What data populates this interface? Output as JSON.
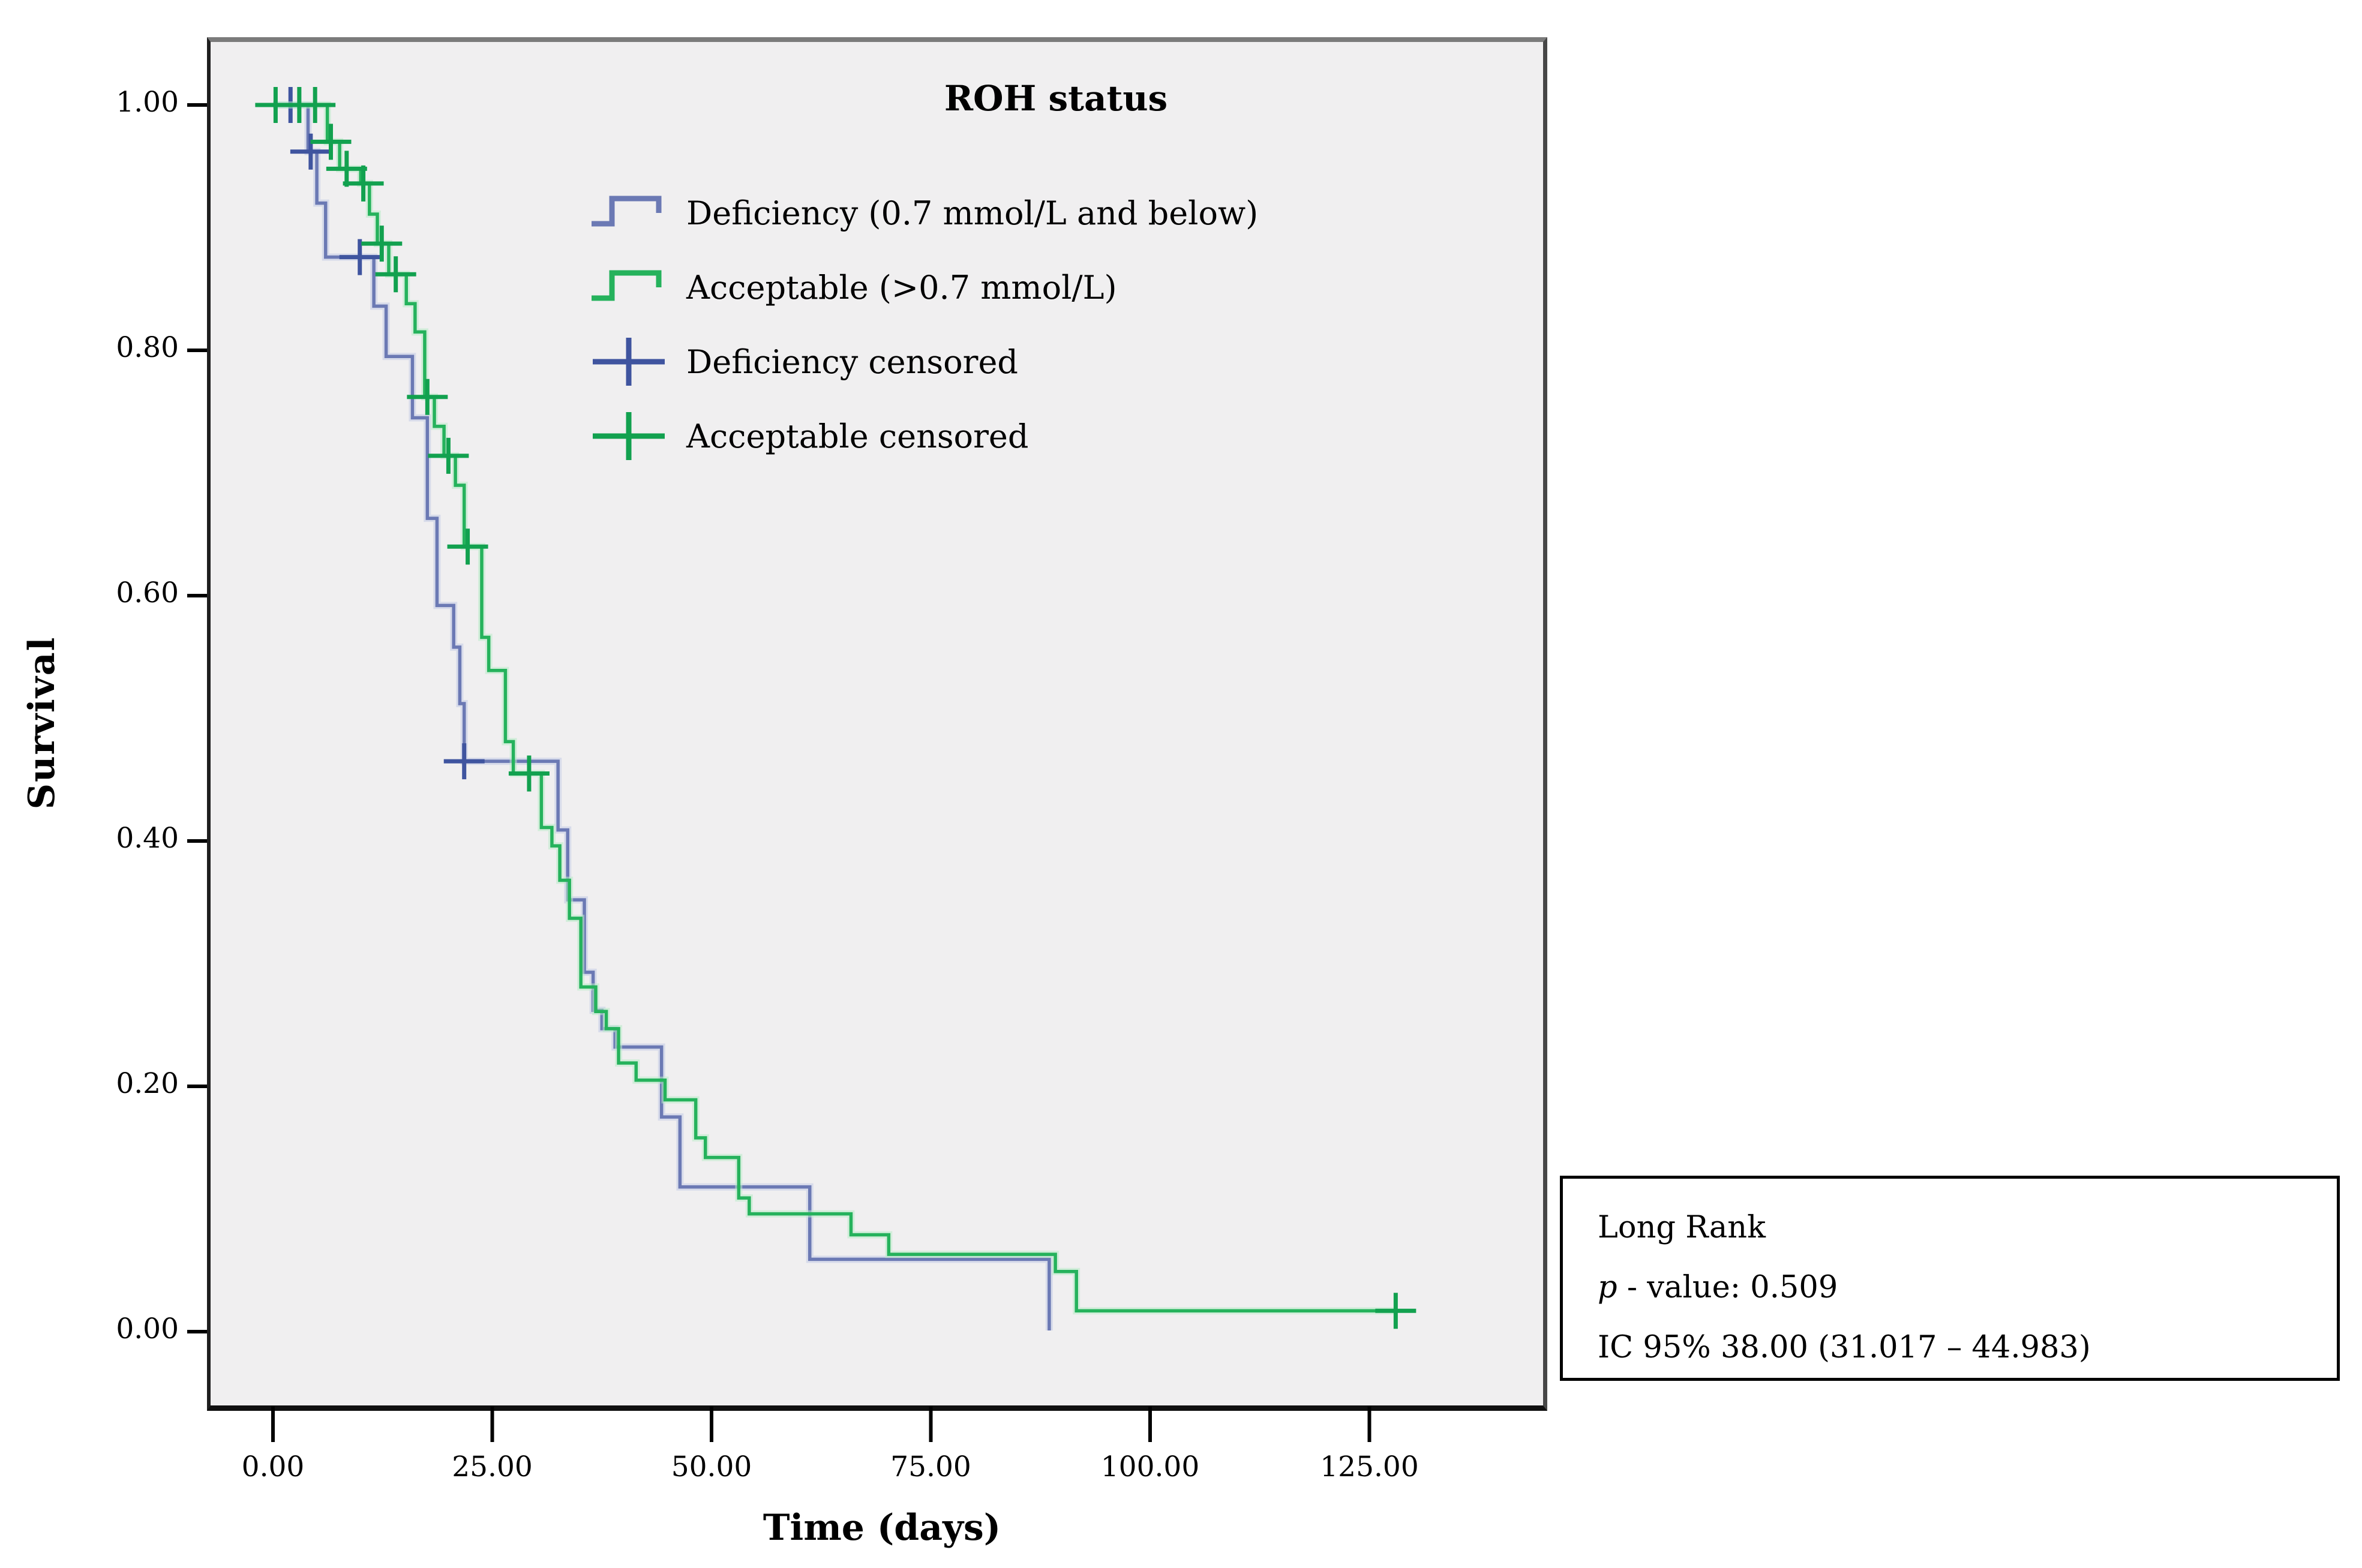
{
  "chart": {
    "y_axis": {
      "title": "Survival",
      "tick_labels": [
        "1.00",
        "0.80",
        "0.60",
        "0.40",
        "0.20",
        "0.00"
      ],
      "tick_values": [
        1.0,
        0.8,
        0.6,
        0.4,
        0.2,
        0.0
      ]
    },
    "x_axis": {
      "title": "Time (days)",
      "tick_labels": [
        "0.00",
        "25.00",
        "50.00",
        "75.00",
        "100.00",
        "125.00"
      ],
      "tick_values": [
        0,
        25,
        50,
        75,
        100,
        125
      ]
    },
    "legend": {
      "title": "ROH status",
      "items": [
        {
          "label": "Deficiency (0.7 mmol/L and below)",
          "symbol": "step",
          "color_key": "deficiency"
        },
        {
          "label": "Acceptable (>0.7 mmol/L)",
          "symbol": "step",
          "color_key": "acceptable"
        },
        {
          "label": "Deficiency censored",
          "symbol": "plus",
          "color_key": "deficiency_censor"
        },
        {
          "label": "Acceptable censored",
          "symbol": "plus",
          "color_key": "acceptable_censor"
        }
      ]
    },
    "stats_box": {
      "line1": "Long Rank",
      "p_symbol": "p",
      "p_rest": " - value: 0.509",
      "line3": "IC 95% 38.00 (31.017 – 44.983)"
    }
  },
  "colors": {
    "deficiency": "#6b79b4",
    "deficiency_halo": "#c3cbe6",
    "deficiency_censor": "#3f549f",
    "acceptable": "#25b25c",
    "acceptable_halo": "#b9ebc9",
    "acceptable_censor": "#12a14f",
    "plot_bg": "#f0eff0",
    "axis": "#000000"
  },
  "chart_data": {
    "type": "line",
    "subtype": "kaplan-meier-step",
    "title": "ROH status",
    "xlabel": "Time (days)",
    "ylabel": "Survival",
    "xlim": [
      0,
      145
    ],
    "ylim": [
      0,
      1.0
    ],
    "x_ticks": [
      0,
      25,
      50,
      75,
      100,
      125
    ],
    "y_ticks": [
      0.0,
      0.2,
      0.4,
      0.6,
      0.8,
      1.0
    ],
    "grid": false,
    "legend_position": "inside-top-center",
    "annotations": [
      "Long Rank",
      "p - value: 0.509",
      "IC 95% 38.00 (31.017 – 44.983)"
    ],
    "series": [
      {
        "name": "Deficiency (0.7 mmol/L and below)",
        "color_key": "deficiency",
        "end_style": "drop",
        "steps": [
          [
            0,
            1.0
          ],
          [
            4,
            0.962
          ],
          [
            5,
            0.92
          ],
          [
            6,
            0.876
          ],
          [
            11.5,
            0.836
          ],
          [
            12.9,
            0.795
          ],
          [
            15.9,
            0.745
          ],
          [
            17.6,
            0.663
          ],
          [
            18.7,
            0.592
          ],
          [
            20.6,
            0.558
          ],
          [
            21.3,
            0.512
          ],
          [
            21.8,
            0.465
          ],
          [
            32.5,
            0.409
          ],
          [
            33.6,
            0.352
          ],
          [
            35.5,
            0.293
          ],
          [
            36.5,
            0.262
          ],
          [
            37.5,
            0.247
          ],
          [
            39,
            0.232
          ],
          [
            44.3,
            0.175
          ],
          [
            46.4,
            0.118
          ],
          [
            61.2,
            0.059
          ],
          [
            88.5,
            0.001
          ]
        ],
        "censored": [
          [
            2,
            1.0
          ],
          [
            4.3,
            0.962
          ],
          [
            9.9,
            0.876
          ],
          [
            21.8,
            0.465
          ]
        ]
      },
      {
        "name": "Acceptable (>0.7 mmol/L)",
        "color_key": "acceptable",
        "end_style": "plateau",
        "steps": [
          [
            0,
            1.0
          ],
          [
            6.2,
            0.97
          ],
          [
            7.6,
            0.948
          ],
          [
            10,
            0.936
          ],
          [
            11,
            0.911
          ],
          [
            11.9,
            0.887
          ],
          [
            13.2,
            0.862
          ],
          [
            15.2,
            0.838
          ],
          [
            16.2,
            0.815
          ],
          [
            17.3,
            0.762
          ],
          [
            18.4,
            0.738
          ],
          [
            19.5,
            0.714
          ],
          [
            20.8,
            0.69
          ],
          [
            21.8,
            0.64
          ],
          [
            23.8,
            0.566
          ],
          [
            24.6,
            0.539
          ],
          [
            26.5,
            0.481
          ],
          [
            27.4,
            0.455
          ],
          [
            30.6,
            0.411
          ],
          [
            31.8,
            0.396
          ],
          [
            32.7,
            0.368
          ],
          [
            33.8,
            0.337
          ],
          [
            35.1,
            0.281
          ],
          [
            36.8,
            0.261
          ],
          [
            38,
            0.247
          ],
          [
            39.4,
            0.219
          ],
          [
            41.4,
            0.205
          ],
          [
            44.7,
            0.189
          ],
          [
            48.2,
            0.158
          ],
          [
            49.3,
            0.142
          ],
          [
            53.1,
            0.109
          ],
          [
            54.3,
            0.096
          ],
          [
            65.9,
            0.079
          ],
          [
            70.2,
            0.063
          ],
          [
            89.2,
            0.049
          ],
          [
            91.6,
            0.017
          ],
          [
            128,
            0.017
          ]
        ],
        "censored": [
          [
            0.3,
            1.0
          ],
          [
            3,
            1.0
          ],
          [
            4.8,
            1.0
          ],
          [
            6.6,
            0.97
          ],
          [
            8.4,
            0.948
          ],
          [
            10.3,
            0.936
          ],
          [
            12.4,
            0.887
          ],
          [
            14,
            0.862
          ],
          [
            17.6,
            0.762
          ],
          [
            20,
            0.714
          ],
          [
            22.2,
            0.64
          ],
          [
            29.2,
            0.455
          ],
          [
            128,
            0.017
          ]
        ]
      }
    ]
  }
}
